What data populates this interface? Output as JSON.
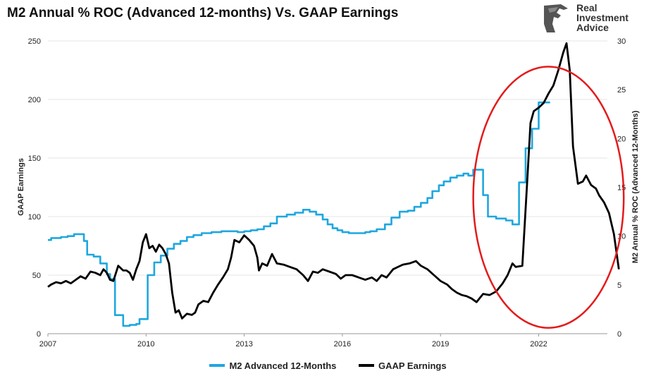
{
  "chart_data": {
    "type": "line",
    "title": "M2 Annual % ROC (Advanced 12-months) Vs. GAAP Earnings",
    "ylabel_left": "GAAP Earnings",
    "ylabel_right": "M2 Annual % ROC (Advanced 12-Months)",
    "xlim": [
      2007,
      2024.1
    ],
    "ylim_left": [
      0,
      250
    ],
    "ylim_right": [
      0,
      30
    ],
    "x_ticks": [
      "2007",
      "2010",
      "2013",
      "2016",
      "2019",
      "2022"
    ],
    "y_ticks_left": [
      "0",
      "50",
      "100",
      "150",
      "200",
      "250"
    ],
    "y_ticks_right": [
      "0",
      "5",
      "10",
      "15",
      "20",
      "25",
      "30"
    ],
    "grid": "horizontal",
    "legend_position": "bottom",
    "series": [
      {
        "name": "M2 Advanced 12-Months",
        "axis": "right",
        "color": "#1fa7df",
        "step": true,
        "points": [
          [
            2007.0,
            9.6
          ],
          [
            2007.1,
            9.8
          ],
          [
            2007.4,
            9.9
          ],
          [
            2007.6,
            10.0
          ],
          [
            2007.8,
            10.2
          ],
          [
            2008.1,
            9.5
          ],
          [
            2008.2,
            8.1
          ],
          [
            2008.4,
            7.9
          ],
          [
            2008.6,
            7.2
          ],
          [
            2008.8,
            6.1
          ],
          [
            2008.9,
            5.6
          ],
          [
            2009.05,
            1.9
          ],
          [
            2009.3,
            0.8
          ],
          [
            2009.5,
            0.9
          ],
          [
            2009.7,
            1.0
          ],
          [
            2009.8,
            1.5
          ],
          [
            2010.0,
            1.5
          ],
          [
            2010.05,
            6.0
          ],
          [
            2010.25,
            7.3
          ],
          [
            2010.45,
            8.0
          ],
          [
            2010.65,
            8.7
          ],
          [
            2010.85,
            9.2
          ],
          [
            2011.05,
            9.5
          ],
          [
            2011.25,
            9.9
          ],
          [
            2011.45,
            10.1
          ],
          [
            2011.7,
            10.3
          ],
          [
            2012.0,
            10.4
          ],
          [
            2012.3,
            10.5
          ],
          [
            2012.6,
            10.5
          ],
          [
            2012.8,
            10.4
          ],
          [
            2013.0,
            10.5
          ],
          [
            2013.2,
            10.6
          ],
          [
            2013.4,
            10.7
          ],
          [
            2013.6,
            11.0
          ],
          [
            2013.8,
            11.3
          ],
          [
            2014.0,
            12.0
          ],
          [
            2014.3,
            12.2
          ],
          [
            2014.55,
            12.4
          ],
          [
            2014.8,
            12.7
          ],
          [
            2015.0,
            12.5
          ],
          [
            2015.2,
            12.2
          ],
          [
            2015.4,
            11.7
          ],
          [
            2015.55,
            11.2
          ],
          [
            2015.7,
            10.8
          ],
          [
            2015.85,
            10.6
          ],
          [
            2016.0,
            10.4
          ],
          [
            2016.2,
            10.3
          ],
          [
            2016.45,
            10.3
          ],
          [
            2016.7,
            10.4
          ],
          [
            2016.85,
            10.5
          ],
          [
            2017.05,
            10.7
          ],
          [
            2017.3,
            11.2
          ],
          [
            2017.5,
            11.9
          ],
          [
            2017.75,
            12.5
          ],
          [
            2018.0,
            12.6
          ],
          [
            2018.2,
            13.0
          ],
          [
            2018.4,
            13.4
          ],
          [
            2018.6,
            13.9
          ],
          [
            2018.75,
            14.6
          ],
          [
            2018.95,
            15.2
          ],
          [
            2019.1,
            15.6
          ],
          [
            2019.3,
            16.0
          ],
          [
            2019.5,
            16.2
          ],
          [
            2019.7,
            16.4
          ],
          [
            2019.85,
            16.2
          ],
          [
            2020.0,
            16.8
          ],
          [
            2020.2,
            16.8
          ],
          [
            2020.3,
            14.2
          ],
          [
            2020.45,
            12.0
          ],
          [
            2020.7,
            11.8
          ],
          [
            2021.0,
            11.6
          ],
          [
            2021.2,
            11.2
          ],
          [
            2021.4,
            15.5
          ],
          [
            2021.6,
            19.0
          ],
          [
            2021.8,
            21.0
          ],
          [
            2022.0,
            23.7
          ],
          [
            2022.35,
            23.7
          ]
        ]
      },
      {
        "name": "GAAP Earnings",
        "axis": "left",
        "color": "#000000",
        "step": false,
        "points": [
          [
            2007.0,
            40
          ],
          [
            2007.1,
            42
          ],
          [
            2007.25,
            44
          ],
          [
            2007.4,
            43
          ],
          [
            2007.55,
            45
          ],
          [
            2007.7,
            43
          ],
          [
            2007.85,
            46
          ],
          [
            2008.0,
            49
          ],
          [
            2008.15,
            47
          ],
          [
            2008.3,
            53
          ],
          [
            2008.45,
            52
          ],
          [
            2008.6,
            50
          ],
          [
            2008.7,
            55
          ],
          [
            2008.8,
            52
          ],
          [
            2008.9,
            46
          ],
          [
            2009.0,
            45
          ],
          [
            2009.15,
            58
          ],
          [
            2009.3,
            54
          ],
          [
            2009.4,
            54
          ],
          [
            2009.5,
            52
          ],
          [
            2009.6,
            46
          ],
          [
            2009.7,
            55
          ],
          [
            2009.8,
            62
          ],
          [
            2009.9,
            78
          ],
          [
            2010.0,
            85
          ],
          [
            2010.1,
            73
          ],
          [
            2010.2,
            75
          ],
          [
            2010.3,
            70
          ],
          [
            2010.4,
            76
          ],
          [
            2010.5,
            73
          ],
          [
            2010.6,
            68
          ],
          [
            2010.7,
            60
          ],
          [
            2010.8,
            35
          ],
          [
            2010.9,
            18
          ],
          [
            2011.0,
            20
          ],
          [
            2011.1,
            13
          ],
          [
            2011.25,
            17
          ],
          [
            2011.4,
            16
          ],
          [
            2011.5,
            18
          ],
          [
            2011.6,
            25
          ],
          [
            2011.75,
            28
          ],
          [
            2011.9,
            27
          ],
          [
            2012.05,
            35
          ],
          [
            2012.2,
            42
          ],
          [
            2012.35,
            48
          ],
          [
            2012.5,
            55
          ],
          [
            2012.6,
            65
          ],
          [
            2012.7,
            80
          ],
          [
            2012.85,
            78
          ],
          [
            2013.0,
            84
          ],
          [
            2013.15,
            80
          ],
          [
            2013.3,
            75
          ],
          [
            2013.4,
            65
          ],
          [
            2013.45,
            54
          ],
          [
            2013.55,
            60
          ],
          [
            2013.7,
            58
          ],
          [
            2013.85,
            68
          ],
          [
            2014.0,
            60
          ],
          [
            2014.2,
            59
          ],
          [
            2014.4,
            57
          ],
          [
            2014.6,
            55
          ],
          [
            2014.8,
            50
          ],
          [
            2014.95,
            45
          ],
          [
            2015.1,
            53
          ],
          [
            2015.25,
            52
          ],
          [
            2015.4,
            55
          ],
          [
            2015.6,
            53
          ],
          [
            2015.8,
            51
          ],
          [
            2015.95,
            47
          ],
          [
            2016.1,
            50
          ],
          [
            2016.3,
            50
          ],
          [
            2016.5,
            48
          ],
          [
            2016.7,
            46
          ],
          [
            2016.9,
            48
          ],
          [
            2017.05,
            45
          ],
          [
            2017.2,
            50
          ],
          [
            2017.35,
            48
          ],
          [
            2017.55,
            55
          ],
          [
            2017.7,
            57
          ],
          [
            2017.85,
            59
          ],
          [
            2018.05,
            60
          ],
          [
            2018.25,
            62
          ],
          [
            2018.4,
            58
          ],
          [
            2018.6,
            55
          ],
          [
            2018.8,
            50
          ],
          [
            2019.0,
            45
          ],
          [
            2019.2,
            42
          ],
          [
            2019.35,
            38
          ],
          [
            2019.5,
            35
          ],
          [
            2019.65,
            33
          ],
          [
            2019.8,
            32
          ],
          [
            2019.95,
            30
          ],
          [
            2020.1,
            27
          ],
          [
            2020.3,
            34
          ],
          [
            2020.5,
            33
          ],
          [
            2020.7,
            36
          ],
          [
            2020.9,
            43
          ],
          [
            2021.05,
            50
          ],
          [
            2021.2,
            60
          ],
          [
            2021.3,
            57
          ],
          [
            2021.5,
            58
          ],
          [
            2021.65,
            130
          ],
          [
            2021.75,
            180
          ],
          [
            2021.85,
            190
          ],
          [
            2022.0,
            193
          ],
          [
            2022.15,
            197
          ],
          [
            2022.3,
            205
          ],
          [
            2022.45,
            212
          ],
          [
            2022.6,
            225
          ],
          [
            2022.75,
            240
          ],
          [
            2022.85,
            248
          ],
          [
            2022.95,
            225
          ],
          [
            2023.05,
            160
          ],
          [
            2023.2,
            128
          ],
          [
            2023.35,
            130
          ],
          [
            2023.45,
            135
          ],
          [
            2023.6,
            127
          ],
          [
            2023.75,
            124
          ],
          [
            2023.85,
            118
          ],
          [
            2024.0,
            112
          ],
          [
            2024.15,
            103
          ],
          [
            2024.3,
            85
          ],
          [
            2024.45,
            55
          ]
        ]
      }
    ],
    "annotation": {
      "type": "ellipse",
      "color": "#e31b1b",
      "x_range": [
        2020.0,
        2024.6
      ],
      "y_range_left": [
        5,
        228
      ]
    }
  },
  "logo": {
    "line1": "Real",
    "line2": "Investment",
    "line3": "Advice"
  }
}
